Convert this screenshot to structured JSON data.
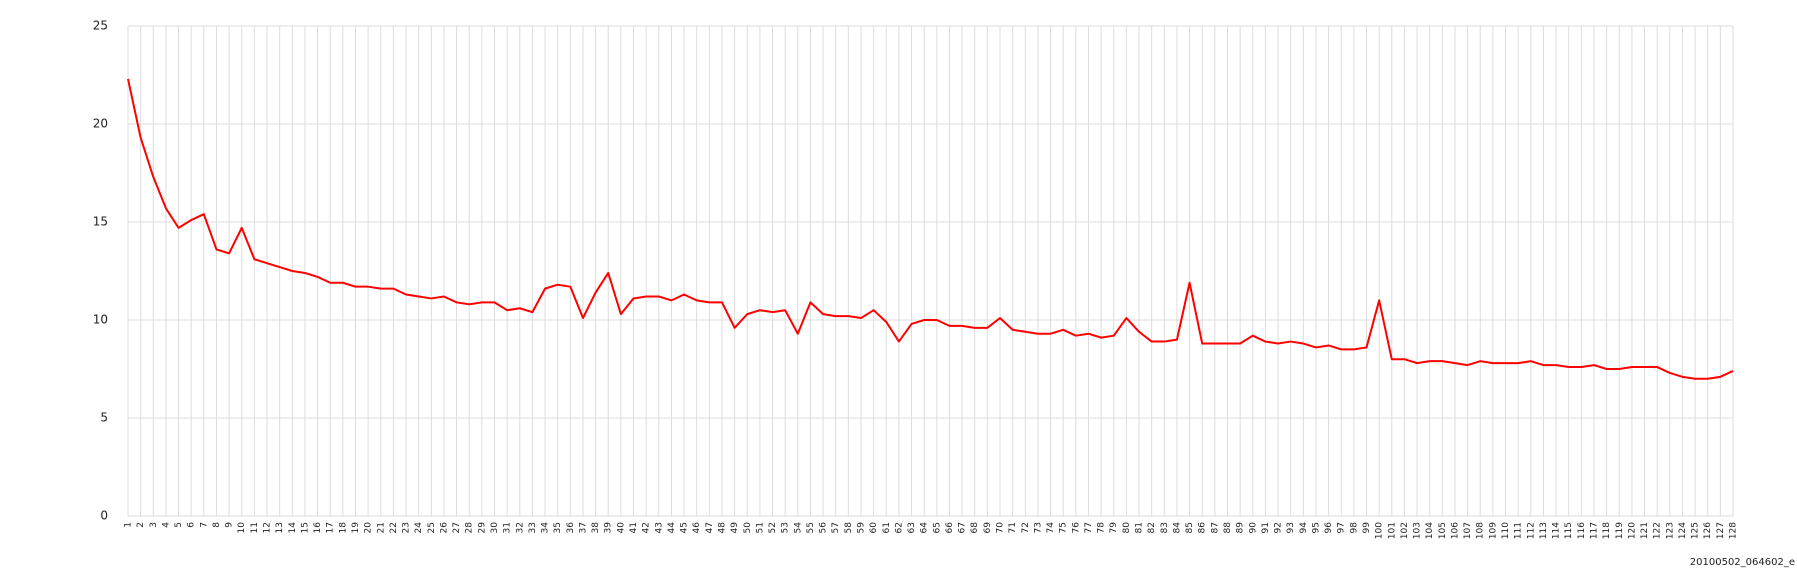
{
  "chart_data": {
    "type": "line",
    "categories": [
      "1",
      "2",
      "3",
      "4",
      "5",
      "6",
      "7",
      "8",
      "9",
      "10",
      "11",
      "12",
      "13",
      "14",
      "15",
      "16",
      "17",
      "18",
      "19",
      "20",
      "21",
      "22",
      "23",
      "24",
      "25",
      "26",
      "27",
      "28",
      "29",
      "30",
      "31",
      "32",
      "33",
      "34",
      "35",
      "36",
      "37",
      "38",
      "39",
      "40",
      "41",
      "42",
      "43",
      "44",
      "45",
      "46",
      "47",
      "48",
      "49",
      "50",
      "51",
      "52",
      "53",
      "54",
      "55",
      "56",
      "57",
      "58",
      "59",
      "60",
      "61",
      "62",
      "63",
      "64",
      "65",
      "66",
      "67",
      "68",
      "69",
      "70",
      "71",
      "72",
      "73",
      "74",
      "75",
      "76",
      "77",
      "78",
      "79",
      "80",
      "81",
      "82",
      "83",
      "84",
      "85",
      "86",
      "87",
      "88",
      "89",
      "90",
      "91",
      "92",
      "93",
      "94",
      "95",
      "96",
      "97",
      "98",
      "99",
      "100",
      "101",
      "102",
      "103",
      "104",
      "105",
      "106",
      "107",
      "108",
      "109",
      "110",
      "111",
      "112",
      "113",
      "114",
      "115",
      "116",
      "117",
      "118",
      "119",
      "120",
      "121",
      "122",
      "123",
      "124",
      "125",
      "126",
      "127",
      "128"
    ],
    "values": [
      22.3,
      19.3,
      17.3,
      15.7,
      14.7,
      15.1,
      15.4,
      13.6,
      13.4,
      14.7,
      13.1,
      12.9,
      12.7,
      12.5,
      12.4,
      12.2,
      11.9,
      11.9,
      11.7,
      11.7,
      11.6,
      11.6,
      11.3,
      11.2,
      11.1,
      11.2,
      10.9,
      10.8,
      10.9,
      10.9,
      10.5,
      10.6,
      10.4,
      11.6,
      11.8,
      11.7,
      10.1,
      11.4,
      12.4,
      10.3,
      11.1,
      11.2,
      11.2,
      11.0,
      11.3,
      11.0,
      10.9,
      10.9,
      9.6,
      10.3,
      10.5,
      10.4,
      10.5,
      9.3,
      10.9,
      10.3,
      10.2,
      10.2,
      10.1,
      10.5,
      9.9,
      8.9,
      9.8,
      10.0,
      10.0,
      9.7,
      9.7,
      9.6,
      9.6,
      10.1,
      9.5,
      9.4,
      9.3,
      9.3,
      9.5,
      9.2,
      9.3,
      9.1,
      9.2,
      10.1,
      9.4,
      8.9,
      8.9,
      9.0,
      11.9,
      8.8,
      8.8,
      8.8,
      8.8,
      9.2,
      8.9,
      8.8,
      8.9,
      8.8,
      8.6,
      8.7,
      8.5,
      8.5,
      8.6,
      11.0,
      8.0,
      8.0,
      7.8,
      7.9,
      7.9,
      7.8,
      7.7,
      7.9,
      7.8,
      7.8,
      7.8,
      7.9,
      7.7,
      7.7,
      7.6,
      7.6,
      7.7,
      7.5,
      7.5,
      7.6,
      7.6,
      7.6,
      7.3,
      7.1,
      7.0,
      7.0,
      7.1,
      7.4
    ],
    "color": "#ff0000",
    "ylim": [
      0,
      25
    ],
    "yticks": [
      0,
      5,
      10,
      15,
      20,
      25
    ],
    "grid": true,
    "annotation": "20100502_064602_e"
  }
}
